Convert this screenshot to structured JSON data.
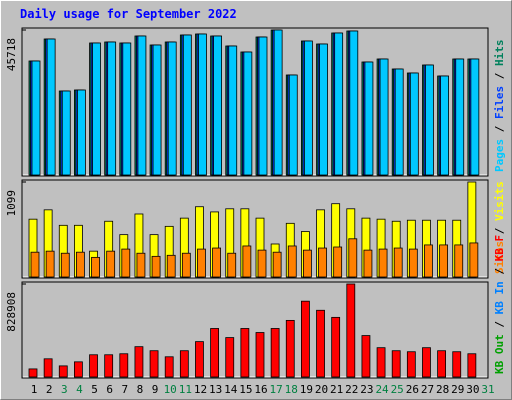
{
  "chart_data": [
    {
      "type": "bar",
      "title": "Daily usage for September 2022",
      "legend_separator": "/",
      "ylim": [
        0,
        45718
      ],
      "yticks": [
        45718
      ],
      "series": [
        {
          "name": "Hits",
          "color": "#00805c",
          "values": [
            35944,
            42881,
            26485,
            26800,
            41620,
            41935,
            41620,
            43827,
            40989,
            41935,
            44142,
            44457,
            43827,
            40674,
            38782,
            43511,
            45718,
            31530,
            42250,
            41304,
            44773,
            45403,
            35629,
            36575,
            33422,
            32161,
            34683,
            31215,
            36575,
            36575,
            null
          ]
        },
        {
          "name": "Files",
          "color": "#0040ff",
          "values": [
            35944,
            42881,
            26485,
            26800,
            41620,
            41935,
            41620,
            43827,
            40989,
            41935,
            44142,
            44457,
            43827,
            40674,
            38782,
            43511,
            45718,
            31530,
            42250,
            41304,
            44773,
            45403,
            35629,
            36575,
            33422,
            32161,
            34683,
            31215,
            36575,
            36575,
            null
          ]
        },
        {
          "name": "Pages",
          "color": "#00c8ff",
          "values": [
            35944,
            42881,
            26485,
            26800,
            41620,
            41935,
            41620,
            43827,
            40989,
            41935,
            44142,
            44457,
            43827,
            40674,
            38782,
            43511,
            45718,
            31530,
            42250,
            41304,
            44773,
            45403,
            35629,
            36575,
            33422,
            32161,
            34683,
            31215,
            36575,
            36575,
            null
          ]
        }
      ]
    },
    {
      "type": "bar",
      "legend_separator": "/",
      "ylim": [
        0,
        1099
      ],
      "yticks": [
        1099
      ],
      "series": [
        {
          "name": "Visits",
          "color": "#ffff00",
          "values": [
            669,
            777,
            598,
            598,
            299,
            645,
            490,
            729,
            490,
            586,
            681,
            813,
            753,
            789,
            789,
            681,
            382,
            621,
            526,
            777,
            848,
            789,
            681,
            669,
            645,
            657,
            657,
            657,
            657,
            1099,
            null
          ]
        },
        {
          "name": "Sites",
          "color": "#ff8000",
          "values": [
            287,
            299,
            275,
            287,
            227,
            299,
            323,
            275,
            239,
            251,
            275,
            323,
            335,
            275,
            359,
            311,
            287,
            359,
            311,
            335,
            347,
            442,
            311,
            323,
            335,
            323,
            371,
            371,
            371,
            394,
            null
          ]
        }
      ]
    },
    {
      "type": "bar",
      "legend_separator": "/",
      "ylim": [
        0,
        828908
      ],
      "yticks": [
        828908
      ],
      "categories": [
        "1",
        "2",
        "3",
        "4",
        "5",
        "6",
        "7",
        "8",
        "9",
        "10",
        "11",
        "12",
        "13",
        "14",
        "15",
        "16",
        "17",
        "18",
        "19",
        "20",
        "21",
        "22",
        "23",
        "24",
        "25",
        "26",
        "27",
        "28",
        "29",
        "30",
        "31"
      ],
      "category_colors": [
        "#000000",
        "#000000",
        "#008040",
        "#008040",
        "#000000",
        "#000000",
        "#000000",
        "#000000",
        "#000000",
        "#008040",
        "#008040",
        "#000000",
        "#000000",
        "#000000",
        "#000000",
        "#000000",
        "#008040",
        "#008040",
        "#000000",
        "#000000",
        "#000000",
        "#000000",
        "#000000",
        "#008040",
        "#008040",
        "#000000",
        "#000000",
        "#000000",
        "#000000",
        "#000000",
        "#008040"
      ],
      "series": [
        {
          "name": "KB F",
          "color": "#ff0000",
          "values": [
            72080,
            162180,
            99110,
            135150,
            198220,
            198220,
            207230,
            270300,
            234260,
            180200,
            234260,
            315350,
            432480,
            351390,
            432480,
            396440,
            432480,
            504560,
            675750,
            594660,
            531590,
            828908,
            369410,
            261290,
            234260,
            225250,
            261290,
            234260,
            225250,
            207230,
            null
          ]
        },
        {
          "name": "KB In",
          "color": "#0080ff",
          "values": [
            0,
            0,
            0,
            0,
            0,
            0,
            0,
            0,
            0,
            0,
            0,
            0,
            0,
            0,
            0,
            0,
            0,
            0,
            0,
            0,
            0,
            0,
            0,
            0,
            0,
            0,
            0,
            0,
            0,
            0,
            null
          ]
        },
        {
          "name": "KB Out",
          "color": "#00a000",
          "values": [
            0,
            0,
            0,
            0,
            0,
            0,
            0,
            0,
            0,
            0,
            0,
            0,
            0,
            0,
            0,
            0,
            0,
            0,
            0,
            0,
            0,
            0,
            0,
            0,
            0,
            0,
            0,
            0,
            0,
            0,
            null
          ]
        }
      ]
    }
  ]
}
